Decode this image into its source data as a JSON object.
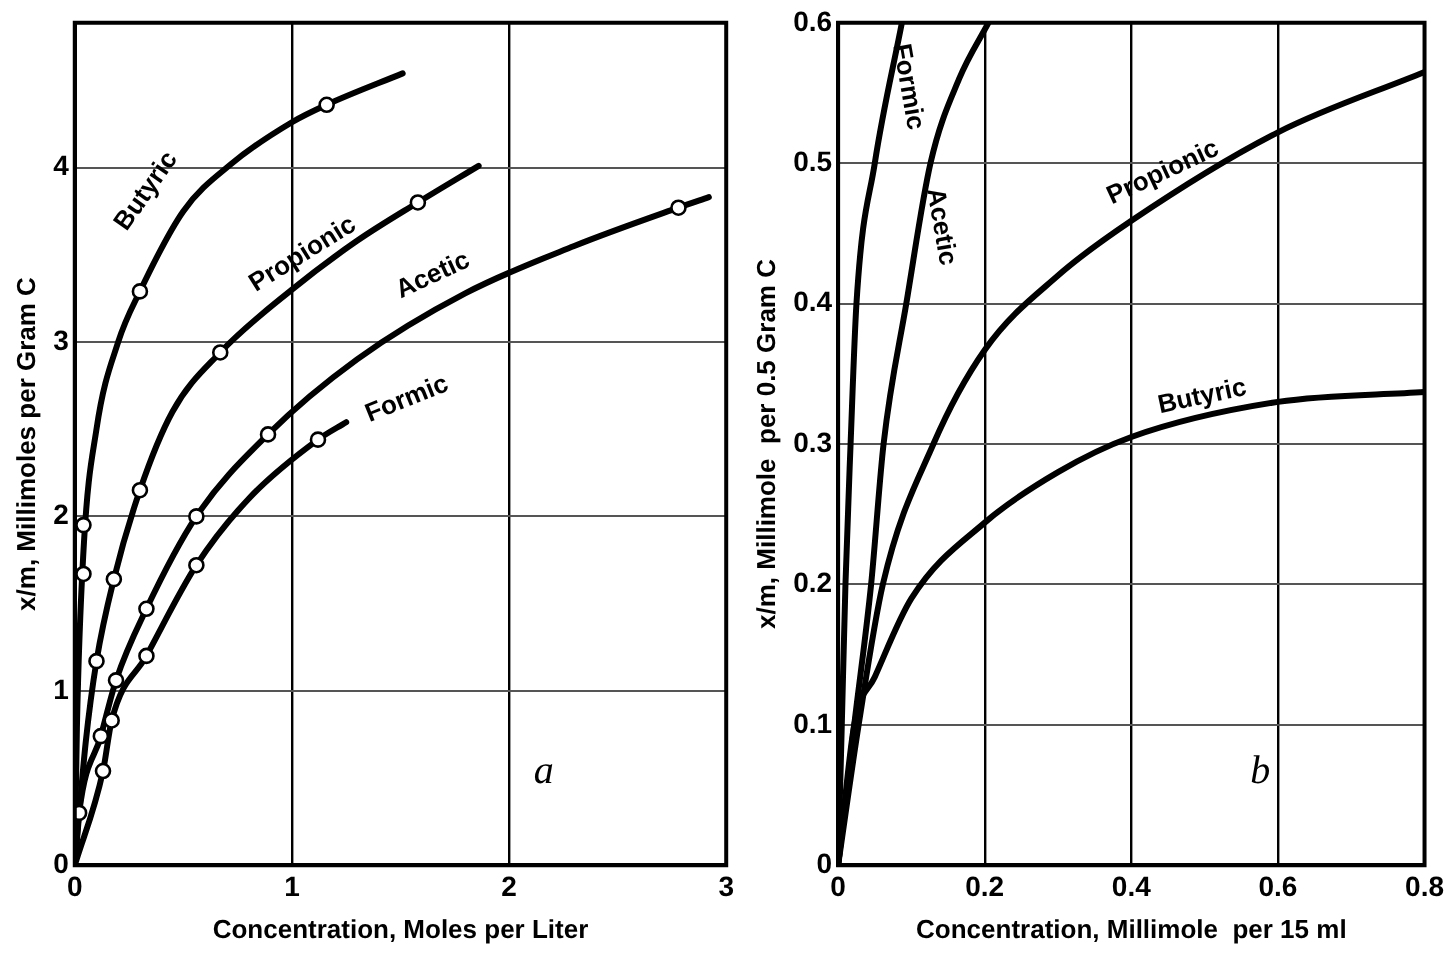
{
  "chart_data": [
    {
      "type": "line",
      "xlabel": "Concentration, Moles per Liter",
      "ylabel": "x/m, Millimoles per Gram C",
      "annotations": [
        "a"
      ],
      "xlim": [
        0,
        3
      ],
      "xticks": [
        0,
        1,
        2,
        3
      ],
      "ylim": [
        0,
        4.83
      ],
      "yticks": [
        0,
        1,
        2,
        3,
        4
      ],
      "grid": true,
      "legend": false,
      "series": [
        {
          "name": "Butyric",
          "type": "line",
          "marker": "none",
          "color": "#000000",
          "x": [
            0,
            0.01,
            0.04,
            0.1,
            0.2,
            0.3,
            0.5,
            0.72,
            1.0,
            1.16,
            1.51
          ],
          "values": [
            0,
            0.8,
            1.8,
            2.5,
            3.0,
            3.29,
            3.75,
            4.02,
            4.26,
            4.36,
            4.54
          ]
        },
        {
          "name": "Propionic",
          "type": "line",
          "marker": "none",
          "color": "#000000",
          "x": [
            0,
            0.05,
            0.1,
            0.18,
            0.3,
            0.45,
            0.67,
            1.0,
            1.3,
            1.58,
            1.86
          ],
          "values": [
            0,
            0.7,
            1.17,
            1.64,
            2.15,
            2.6,
            2.94,
            3.3,
            3.58,
            3.8,
            4.01
          ]
        },
        {
          "name": "Acetic",
          "type": "line",
          "marker": "none",
          "color": "#000000",
          "x": [
            0,
            0.02,
            0.12,
            0.19,
            0.33,
            0.56,
            0.89,
            1.3,
            1.8,
            2.3,
            2.78,
            2.92
          ],
          "values": [
            0,
            0.3,
            0.74,
            1.06,
            1.47,
            2.0,
            2.47,
            2.9,
            3.28,
            3.55,
            3.77,
            3.83
          ]
        },
        {
          "name": "Formic",
          "type": "line",
          "marker": "none",
          "color": "#000000",
          "x": [
            0,
            0.13,
            0.17,
            0.33,
            0.56,
            0.8,
            1.12,
            1.25
          ],
          "values": [
            0,
            0.54,
            0.83,
            1.2,
            1.72,
            2.1,
            2.44,
            2.54
          ]
        },
        {
          "type": "scatter",
          "marker": "circle",
          "color": "#000000",
          "x": [
            0.04,
            0.04,
            0.3,
            1.16
          ],
          "values": [
            1.95,
            1.67,
            3.29,
            4.36
          ]
        },
        {
          "type": "scatter",
          "marker": "circle",
          "color": "#000000",
          "x": [
            0.1,
            0.18,
            0.3,
            0.67,
            1.58
          ],
          "values": [
            1.17,
            1.64,
            2.15,
            2.94,
            3.8
          ]
        },
        {
          "type": "scatter",
          "marker": "circle",
          "color": "#000000",
          "x": [
            0.02,
            0.12,
            0.19,
            0.33,
            0.56,
            0.89,
            2.78
          ],
          "values": [
            0.3,
            0.74,
            1.06,
            1.47,
            2.0,
            2.47,
            3.77
          ]
        },
        {
          "type": "scatter",
          "marker": "circle",
          "color": "#000000",
          "x": [
            0.13,
            0.17,
            0.33,
            0.56,
            1.12
          ],
          "values": [
            0.54,
            0.83,
            1.2,
            1.72,
            2.44
          ]
        }
      ]
    },
    {
      "type": "line",
      "xlabel": "Concentration, Millimole  per 15 ml",
      "ylabel": "x/m, Millimole  per 0.5 Gram C",
      "annotations": [
        "b"
      ],
      "xlim": [
        0,
        0.8
      ],
      "xticks": [
        0,
        0.2,
        0.4,
        0.6,
        0.8
      ],
      "ylim": [
        0,
        0.6
      ],
      "yticks": [
        0,
        0.1,
        0.2,
        0.3,
        0.4,
        0.5,
        0.6
      ],
      "grid": true,
      "legend": false,
      "series": [
        {
          "name": "Formic",
          "type": "line",
          "marker": "none",
          "color": "#000000",
          "x": [
            0,
            0.005,
            0.01,
            0.017,
            0.025,
            0.05,
            0.087
          ],
          "values": [
            0,
            0.1,
            0.2,
            0.3,
            0.4,
            0.5,
            0.6
          ]
        },
        {
          "name": "Acetic",
          "type": "line",
          "marker": "none",
          "color": "#000000",
          "x": [
            0,
            0.022,
            0.045,
            0.062,
            0.093,
            0.126,
            0.165,
            0.205
          ],
          "values": [
            0,
            0.1,
            0.2,
            0.3,
            0.4,
            0.5,
            0.56,
            0.6
          ]
        },
        {
          "name": "Propionic",
          "type": "line",
          "marker": "none",
          "color": "#000000",
          "x": [
            0,
            0.028,
            0.061,
            0.13,
            0.2,
            0.3,
            0.4,
            0.6,
            0.8
          ],
          "values": [
            0,
            0.1,
            0.2,
            0.3,
            0.367,
            0.42,
            0.459,
            0.522,
            0.565
          ]
        },
        {
          "name": "Butyric",
          "type": "line",
          "marker": "none",
          "color": "#000000",
          "x": [
            0,
            0.022,
            0.05,
            0.1,
            0.2,
            0.3,
            0.4,
            0.6,
            0.8
          ],
          "values": [
            0,
            0.1,
            0.134,
            0.19,
            0.244,
            0.28,
            0.305,
            0.33,
            0.337
          ]
        }
      ]
    }
  ]
}
